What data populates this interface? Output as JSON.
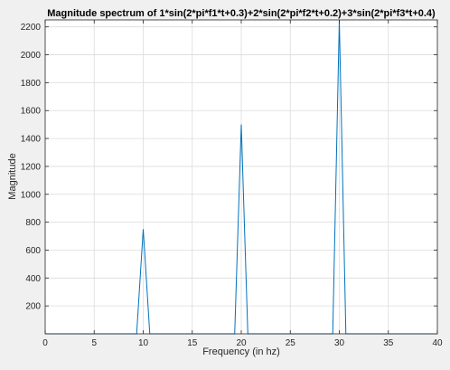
{
  "chart_data": {
    "type": "line",
    "title": "Magnitude spectrum of 1*sin(2*pi*f1*t+0.3)+2*sin(2*pi*f2*t+0.2)+3*sin(2*pi*f3*t+0.4)",
    "xlabel": "Frequency (in hz)",
    "ylabel": "Magnitude",
    "xlim": [
      0,
      40
    ],
    "ylim": [
      0,
      2250
    ],
    "xticks": [
      0,
      5,
      10,
      15,
      20,
      25,
      30,
      35,
      40
    ],
    "yticks": [
      200,
      400,
      600,
      800,
      1000,
      1200,
      1400,
      1600,
      1800,
      2000,
      2200
    ],
    "grid": true,
    "legend": "none",
    "series": [
      {
        "color": "#0072bd",
        "x": [
          0,
          9.33,
          10,
          10.67,
          19.33,
          20,
          20.67,
          29.33,
          30,
          30.67,
          40
        ],
        "y": [
          0,
          0,
          750,
          0,
          0,
          1500,
          0,
          0,
          2250,
          0,
          0
        ]
      }
    ]
  },
  "colors": {
    "figure_background": "#f0f0f0",
    "axes_background": "#ffffff",
    "grid": "#dcdcdc",
    "axis": "#262626"
  }
}
